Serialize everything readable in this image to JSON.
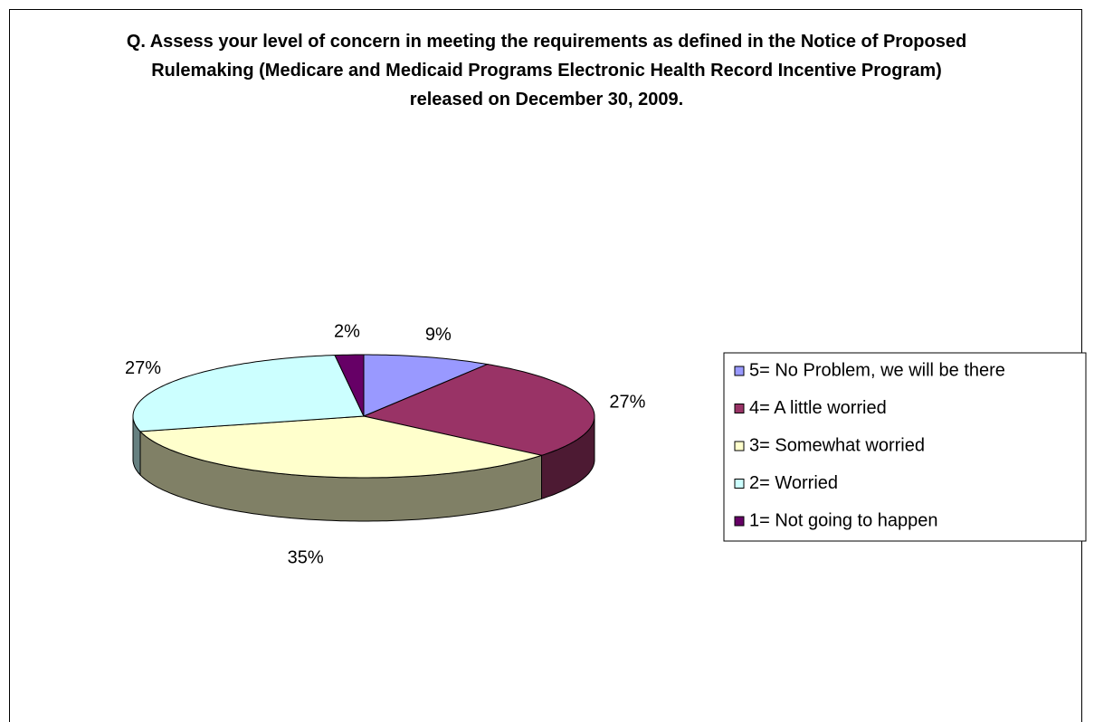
{
  "chart_data": {
    "type": "pie3d",
    "title": "Q. Assess your level of concern in meeting the requirements as defined in the Notice of Proposed Rulemaking (Medicare and Medicaid Programs Electronic Health Record Incentive Program) released on December 30, 2009.",
    "categories": [
      "5= No Problem, we will be there",
      "4= A little worried",
      "3= Somewhat worried",
      "2= Worried",
      "1= Not going to happen"
    ],
    "values": [
      9,
      27,
      35,
      27,
      2
    ],
    "value_labels": [
      "9%",
      "27%",
      "35%",
      "27%",
      "2%"
    ],
    "colors": [
      "#9999ff",
      "#993366",
      "#ffffcc",
      "#ccffff",
      "#660066"
    ],
    "legend": "right"
  }
}
